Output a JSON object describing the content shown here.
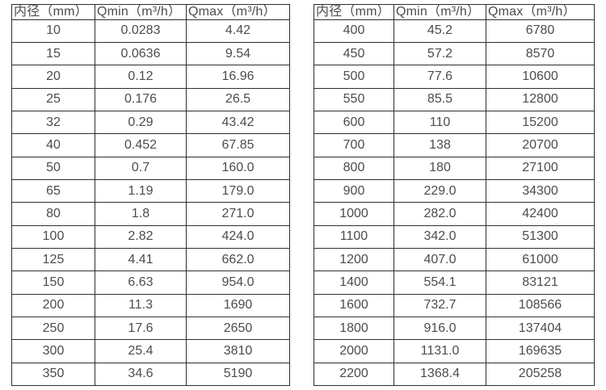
{
  "page": {
    "background": "#ffffff",
    "text_color": "#4c4c4c",
    "border_color": "#2f2f2f"
  },
  "tables": [
    {
      "name": "flow-rate-table-small-diameters",
      "headers": [
        "内径（mm）",
        "Qmin（m³/h）",
        "Qmax（m³/h）"
      ],
      "rows": [
        [
          "10",
          "0.0283",
          "4.42"
        ],
        [
          "15",
          "0.0636",
          "9.54"
        ],
        [
          "20",
          "0.12",
          "16.96"
        ],
        [
          "25",
          "0.176",
          "26.5"
        ],
        [
          "32",
          "0.29",
          "43.42"
        ],
        [
          "40",
          "0.452",
          "67.85"
        ],
        [
          "50",
          "0.7",
          "160.0"
        ],
        [
          "65",
          "1.19",
          "179.0"
        ],
        [
          "80",
          "1.8",
          "271.0"
        ],
        [
          "100",
          "2.82",
          "424.0"
        ],
        [
          "125",
          "4.41",
          "662.0"
        ],
        [
          "150",
          "6.63",
          "954.0"
        ],
        [
          "200",
          "11.3",
          "1690"
        ],
        [
          "250",
          "17.6",
          "2650"
        ],
        [
          "300",
          "25.4",
          "3810"
        ],
        [
          "350",
          "34.6",
          "5190"
        ]
      ]
    },
    {
      "name": "flow-rate-table-large-diameters",
      "headers": [
        "内径（mm）",
        "Qmin（m³/h）",
        "Qmax（m³/h）"
      ],
      "rows": [
        [
          "400",
          "45.2",
          "6780"
        ],
        [
          "450",
          "57.2",
          "8570"
        ],
        [
          "500",
          "77.6",
          "10600"
        ],
        [
          "550",
          "85.5",
          "12800"
        ],
        [
          "600",
          "110",
          "15200"
        ],
        [
          "700",
          "138",
          "20700"
        ],
        [
          "800",
          "180",
          "27100"
        ],
        [
          "900",
          "229.0",
          "34300"
        ],
        [
          "1000",
          "282.0",
          "42400"
        ],
        [
          "1100",
          "342.0",
          "51300"
        ],
        [
          "1200",
          "407.0",
          "61000"
        ],
        [
          "1400",
          "554.1",
          "83121"
        ],
        [
          "1600",
          "732.7",
          "108566"
        ],
        [
          "1800",
          "916.0",
          "137404"
        ],
        [
          "2000",
          "1131.0",
          "169635"
        ],
        [
          "2200",
          "1368.4",
          "205258"
        ]
      ]
    }
  ]
}
